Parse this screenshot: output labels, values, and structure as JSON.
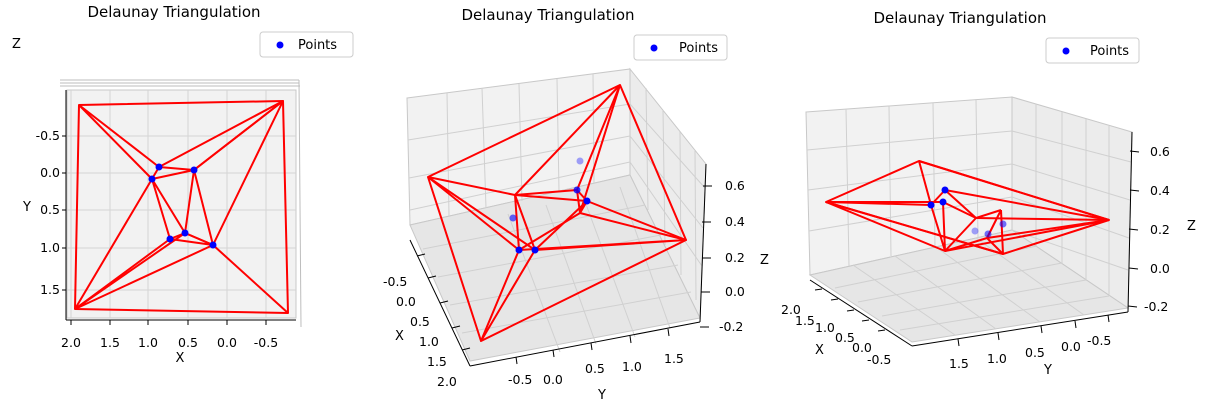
{
  "chart_data": [
    {
      "type": "scatter",
      "title": "Delaunay Triangulation",
      "xlabel": "X",
      "ylabel": "Y",
      "zlabel": "Z",
      "xticks": [
        "2.0",
        "1.5",
        "1.0",
        "0.5",
        "0.0",
        "-0.5"
      ],
      "yticks": [
        "-0.5",
        "0.0",
        "0.5",
        "1.0",
        "1.5"
      ],
      "legend": {
        "label": "Points",
        "location": "top-right"
      },
      "point_color": "#0000ff",
      "edge_color": "#ff0000"
    },
    {
      "type": "scatter",
      "title": "Delaunay Triangulation",
      "xlabel": "X",
      "ylabel": "Y",
      "zlabel": "Z",
      "xticks": [
        "-0.5",
        "0.0",
        "0.5",
        "1.0",
        "1.5",
        "2.0"
      ],
      "yticks": [
        "-0.5",
        "0.0",
        "0.5",
        "1.0",
        "1.5"
      ],
      "zticks": [
        "0.6",
        "0.4",
        "0.2",
        "0.0",
        "-0.2"
      ],
      "legend": {
        "label": "Points",
        "location": "top-right"
      },
      "point_color": "#0000ff",
      "edge_color": "#ff0000"
    },
    {
      "type": "scatter",
      "title": "Delaunay Triangulation",
      "xlabel": "X",
      "ylabel": "Y",
      "zlabel": "Z",
      "xticks": [
        "2.0",
        "1.5",
        "1.0",
        "0.5",
        "0.0",
        "-0.5"
      ],
      "yticks": [
        "1.5",
        "1.0",
        "0.5",
        "0.0",
        "-0.5"
      ],
      "zticks": [
        "0.6",
        "0.4",
        "0.2",
        "0.0",
        "-0.2"
      ],
      "legend": {
        "label": "Points",
        "location": "top-right"
      },
      "point_color": "#0000ff",
      "edge_color": "#ff0000"
    }
  ]
}
